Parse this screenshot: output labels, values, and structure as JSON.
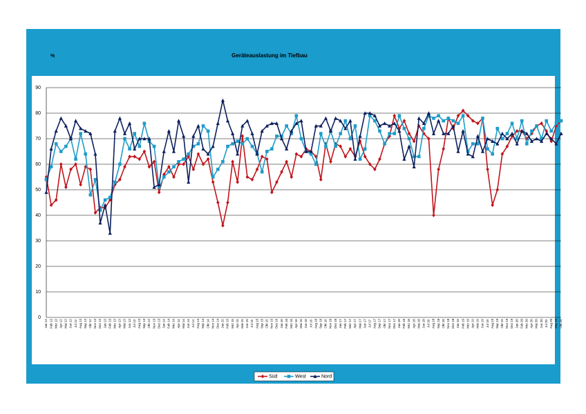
{
  "chart_data": {
    "type": "line",
    "title": "Geräteauslastung im Tiefbau",
    "y_label": "%",
    "categories": [
      "Jan 12",
      "Feb 12",
      "Mrz 12",
      "Apr 12",
      "Mai 12",
      "Jun 12",
      "Jul 12",
      "Aug 12",
      "Sep 12",
      "Okt 12",
      "Nov 12",
      "Dez 12",
      "Jan 13",
      "Feb 13",
      "Mrz 13",
      "Apr 13",
      "Mai 13",
      "Jun 13",
      "Jul 13",
      "Aug 13",
      "Sep 13",
      "Okt 13",
      "Nov 13",
      "Dez 13",
      "Jan 14",
      "Feb 14",
      "Mrz 14",
      "Apr 14",
      "Mai 14",
      "Jun 14",
      "Jul 14",
      "Aug 14",
      "Sep 14",
      "Okt 14",
      "Nov 14",
      "Dez 14",
      "Jan 15",
      "Feb 15",
      "Mrz 15",
      "Apr 15",
      "Mai 15",
      "Jun 15",
      "Jul 15",
      "Aug 15",
      "Sep 15",
      "Okt 15",
      "Nov 15",
      "Dez 15",
      "Jan 16",
      "Feb 16",
      "Mrz 16",
      "Apr 16",
      "Mai 16",
      "Jun 16",
      "Jul 16",
      "Aug 16",
      "Sep 16",
      "Okt 16",
      "Nov 16",
      "Dez 16",
      "Jan 17",
      "Feb 17",
      "Mrz 17",
      "Apr 17",
      "Mai 17",
      "Jun 17",
      "Jul 17",
      "Aug 17",
      "Sep 17",
      "Okt 17",
      "Nov 17",
      "Dez 17",
      "Jan 18",
      "Feb 18",
      "Mrz 18",
      "Apr 18",
      "Mai 18",
      "Jun 18",
      "Jul 18",
      "Aug 18",
      "Sep 18",
      "Okt 18",
      "Nov 18",
      "Dez 18",
      "Jan 19",
      "Feb 19",
      "Mrz 19",
      "Apr 19",
      "Mai 19",
      "Jun 19",
      "Jul 19",
      "Aug 19",
      "Sep 19",
      "Okt 19",
      "Nov 19",
      "Dez 19",
      "Jan 20",
      "Feb 20",
      "Mrz 20",
      "Apr 20",
      "Mai 20",
      "Jun 20",
      "Jul 20",
      "Aug 20",
      "Sep 20",
      "Okt 20"
    ],
    "series": [
      {
        "name": "Süd",
        "color": "#c0141c",
        "marker": "diamond",
        "values": [
          55,
          44,
          46,
          60,
          51,
          58,
          60,
          52,
          59,
          58,
          41,
          43,
          43,
          46,
          52,
          54,
          59,
          63,
          63,
          62,
          65,
          59,
          61,
          49,
          56,
          59,
          55,
          60,
          60,
          63,
          58,
          64,
          60,
          62,
          53,
          45,
          36,
          45,
          61,
          53,
          71,
          55,
          54,
          58,
          63,
          62,
          49,
          53,
          57,
          61,
          55,
          64,
          63,
          66,
          65,
          63,
          54,
          68,
          61,
          68,
          67,
          63,
          66,
          63,
          69,
          63,
          60,
          58,
          62,
          68,
          71,
          79,
          74,
          77,
          72,
          69,
          75,
          72,
          70,
          40,
          58,
          66,
          78,
          74,
          79,
          81,
          79,
          77,
          76,
          78,
          58,
          44,
          50,
          64,
          67,
          71,
          73,
          73,
          70,
          72,
          75,
          76,
          73,
          69,
          75,
          77
        ]
      },
      {
        "name": "West",
        "color": "#1f9cc8",
        "marker": "square",
        "values": [
          54,
          59,
          68,
          65,
          67,
          70,
          62,
          72,
          64,
          48,
          54,
          42,
          46,
          47,
          53,
          60,
          70,
          66,
          72,
          67,
          76,
          69,
          67,
          51,
          55,
          57,
          59,
          61,
          62,
          64,
          67,
          68,
          75,
          73,
          55,
          58,
          61,
          67,
          68,
          69,
          68,
          70,
          67,
          64,
          57,
          65,
          66,
          71,
          71,
          75,
          72,
          79,
          70,
          65,
          64,
          60,
          72,
          67,
          73,
          67,
          72,
          77,
          70,
          75,
          62,
          66,
          79,
          77,
          73,
          68,
          72,
          72,
          79,
          74,
          70,
          63,
          63,
          74,
          79,
          78,
          79,
          77,
          78,
          77,
          76,
          79,
          65,
          68,
          68,
          78,
          66,
          64,
          74,
          70,
          72,
          76,
          70,
          77,
          68,
          73,
          75,
          70,
          77,
          73,
          76,
          77
        ]
      },
      {
        "name": "Nord",
        "color": "#0d1f5c",
        "marker": "triangle",
        "values": [
          49,
          66,
          73,
          78,
          75,
          70,
          77,
          74,
          73,
          72,
          64,
          37,
          44,
          33,
          73,
          78,
          72,
          76,
          66,
          70,
          70,
          70,
          51,
          52,
          65,
          73,
          65,
          77,
          71,
          53,
          71,
          75,
          66,
          64,
          67,
          76,
          85,
          77,
          72,
          64,
          75,
          77,
          72,
          64,
          73,
          75,
          76,
          76,
          70,
          66,
          73,
          76,
          77,
          65,
          65,
          75,
          75,
          78,
          73,
          78,
          77,
          74,
          77,
          62,
          71,
          80,
          80,
          79,
          75,
          76,
          75,
          76,
          73,
          62,
          67,
          59,
          78,
          76,
          80,
          72,
          77,
          72,
          72,
          75,
          65,
          73,
          64,
          63,
          71,
          65,
          70,
          69,
          68,
          72,
          70,
          72,
          68,
          73,
          72,
          69,
          70,
          69,
          72,
          70,
          68,
          72
        ]
      }
    ],
    "ylim": [
      0,
      90
    ],
    "yticks": [
      0,
      10,
      20,
      30,
      40,
      50,
      60,
      70,
      80,
      90
    ],
    "grid": true,
    "legend": "bottom"
  }
}
